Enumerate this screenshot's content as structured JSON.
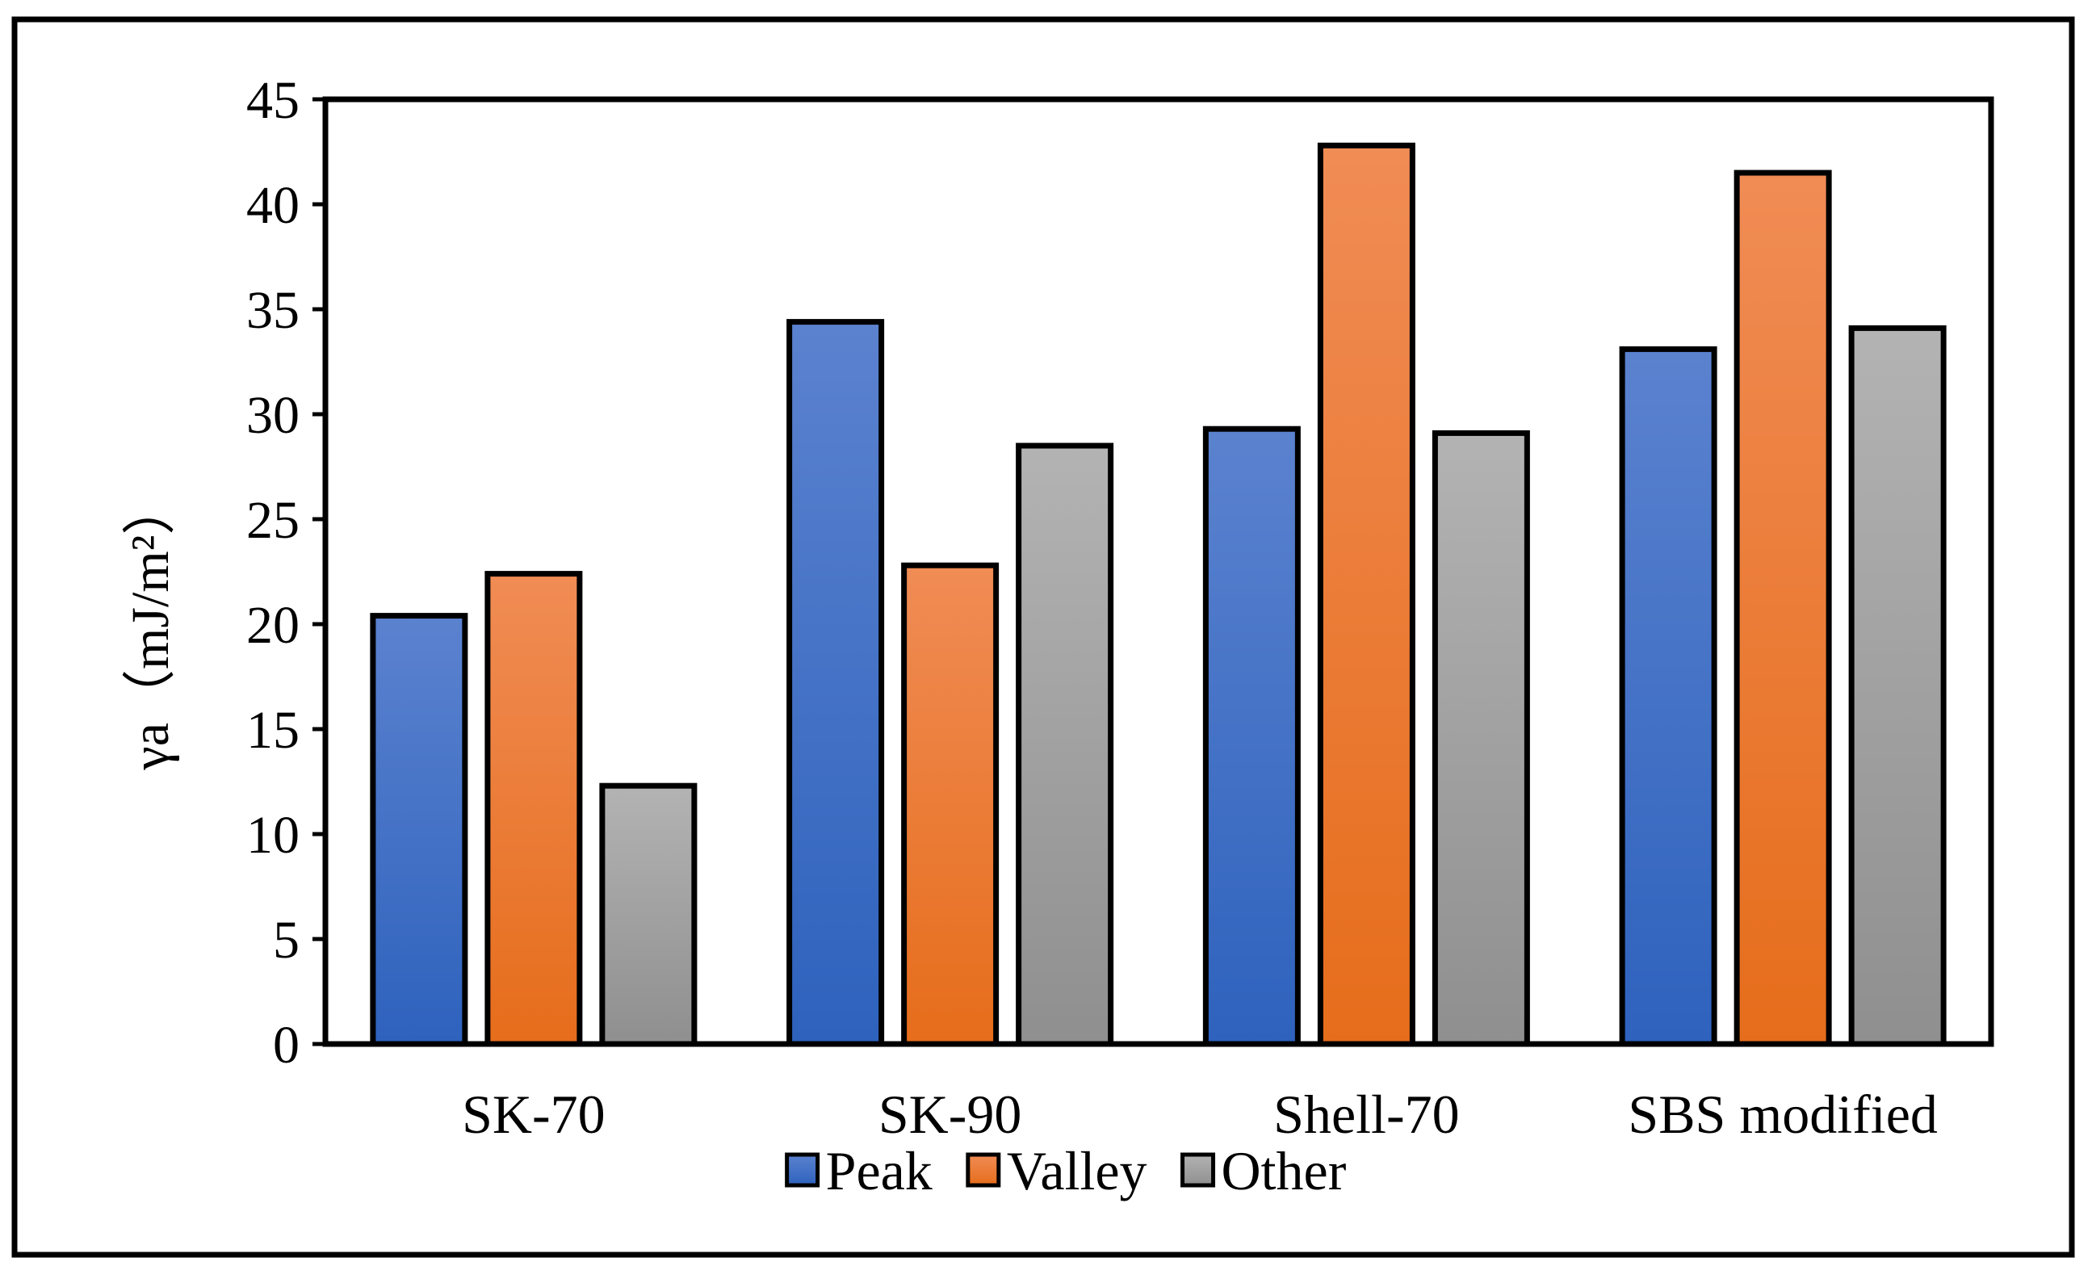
{
  "chart_data": {
    "type": "bar",
    "title": "",
    "xlabel": "",
    "ylabel": "γa（mJ/m²）",
    "ylim": [
      0,
      45
    ],
    "yticks": [
      0,
      5,
      10,
      15,
      20,
      25,
      30,
      35,
      40,
      45
    ],
    "ytick_labels": [
      "0",
      "5",
      "10",
      "15",
      "20",
      "25",
      "30",
      "35",
      "40",
      "45"
    ],
    "grid": false,
    "legend_position": "bottom-center",
    "categories": [
      "SK-70",
      "SK-90",
      "Shell-70",
      "SBS modified"
    ],
    "series": [
      {
        "name": "Peak",
        "values": [
          20.4,
          34.4,
          29.3,
          33.1
        ]
      },
      {
        "name": "Valley",
        "values": [
          22.4,
          22.8,
          42.8,
          41.5
        ]
      },
      {
        "name": "Other",
        "values": [
          12.3,
          28.5,
          29.1,
          34.1
        ]
      }
    ]
  },
  "colors": {
    "peak_top": "#5b82cf",
    "peak_bottom": "#2e62bd",
    "valley_top": "#f08c55",
    "valley_bottom": "#e66d1b",
    "other_top": "#b3b3b3",
    "other_bottom": "#8f8f8f"
  }
}
